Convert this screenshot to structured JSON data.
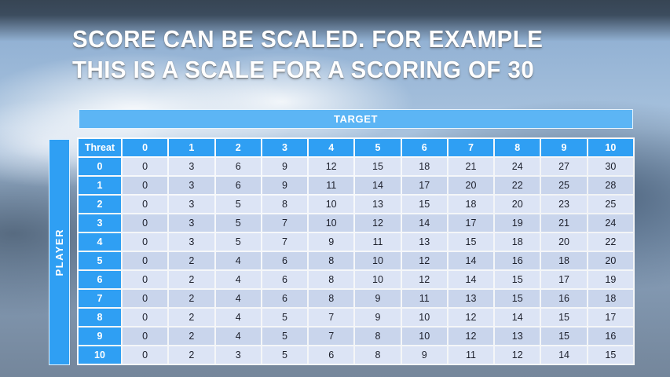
{
  "slide": {
    "title_line1": "SCORE CAN BE SCALED. FOR EXAMPLE",
    "title_line2": "THIS IS A SCALE FOR A SCORING OF 30"
  },
  "table": {
    "target_label": "TARGET",
    "player_label": "PLAYER",
    "corner_label": "Threat",
    "column_headers": [
      "0",
      "1",
      "2",
      "3",
      "4",
      "5",
      "6",
      "7",
      "8",
      "9",
      "10"
    ],
    "rows": [
      {
        "label": "0",
        "values": [
          0,
          3,
          6,
          9,
          12,
          15,
          18,
          21,
          24,
          27,
          30
        ]
      },
      {
        "label": "1",
        "values": [
          0,
          3,
          6,
          9,
          11,
          14,
          17,
          20,
          22,
          25,
          28
        ]
      },
      {
        "label": "2",
        "values": [
          0,
          3,
          5,
          8,
          10,
          13,
          15,
          18,
          20,
          23,
          25
        ]
      },
      {
        "label": "3",
        "values": [
          0,
          3,
          5,
          7,
          10,
          12,
          14,
          17,
          19,
          21,
          24
        ]
      },
      {
        "label": "4",
        "values": [
          0,
          3,
          5,
          7,
          9,
          11,
          13,
          15,
          18,
          20,
          22
        ]
      },
      {
        "label": "5",
        "values": [
          0,
          2,
          4,
          6,
          8,
          10,
          12,
          14,
          16,
          18,
          20
        ]
      },
      {
        "label": "6",
        "values": [
          0,
          2,
          4,
          6,
          8,
          10,
          12,
          14,
          15,
          17,
          19
        ]
      },
      {
        "label": "7",
        "values": [
          0,
          2,
          4,
          6,
          8,
          9,
          11,
          13,
          15,
          16,
          18
        ]
      },
      {
        "label": "8",
        "values": [
          0,
          2,
          4,
          5,
          7,
          9,
          10,
          12,
          14,
          15,
          17
        ]
      },
      {
        "label": "9",
        "values": [
          0,
          2,
          4,
          5,
          7,
          8,
          10,
          12,
          13,
          15,
          16
        ]
      },
      {
        "label": "10",
        "values": [
          0,
          2,
          3,
          5,
          6,
          8,
          9,
          11,
          12,
          14,
          15
        ]
      }
    ]
  },
  "colors": {
    "header_blue": "#2f9ff3",
    "target_blue": "#5cb5f5",
    "row_light": "#dce4f5",
    "row_dark": "#c9d5ec",
    "cell_text": "#1c1f2b",
    "title_white": "#ffffff"
  }
}
